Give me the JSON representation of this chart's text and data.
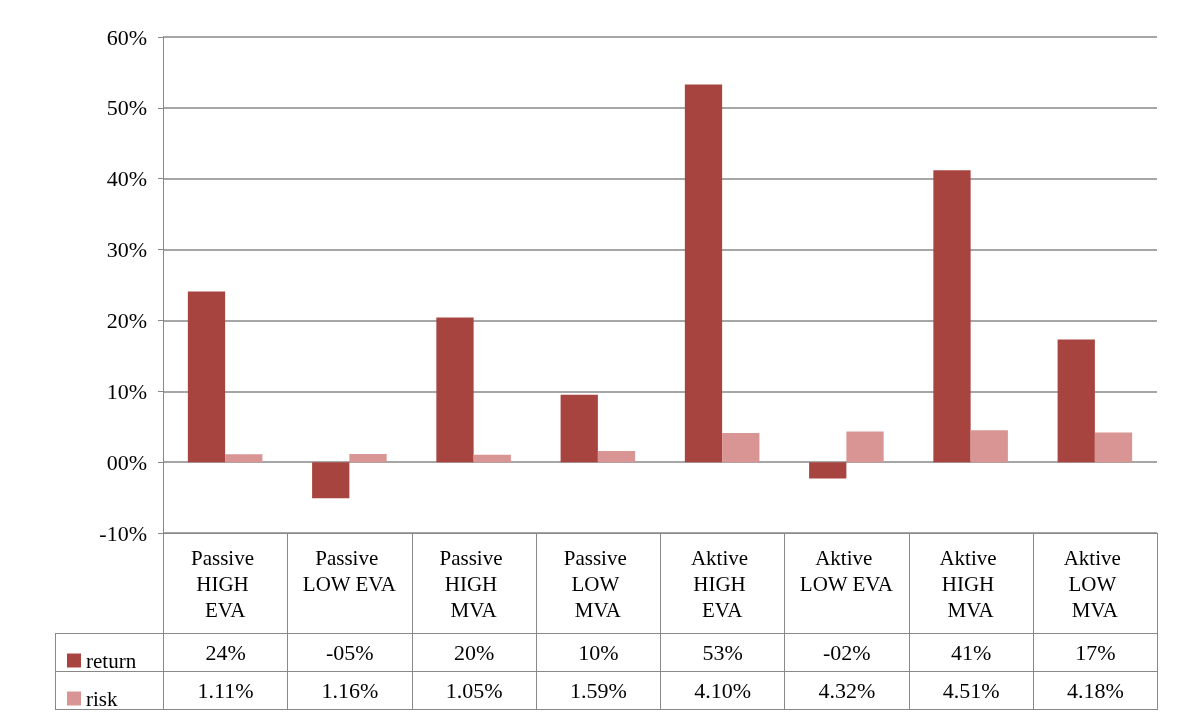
{
  "chart_data": {
    "type": "bar",
    "categories": [
      "Passive HIGH EVA",
      "Passive LOW EVA",
      "Passive HIGH MVA",
      "Passive LOW MVA",
      "Aktive HIGH EVA",
      "Aktive LOW EVA",
      "Aktive HIGH MVA",
      "Aktive LOW MVA"
    ],
    "series": [
      {
        "name": "return",
        "color": "#a8443f",
        "values": [
          24.1,
          -5.1,
          20.4,
          9.5,
          53.3,
          -2.3,
          41.2,
          17.3
        ],
        "value_labels": [
          "24%",
          "-05%",
          "20%",
          "10%",
          "53%",
          "-02%",
          "41%",
          "17%"
        ]
      },
      {
        "name": "risk",
        "color": "#d99594",
        "values": [
          1.11,
          1.16,
          1.05,
          1.59,
          4.1,
          4.32,
          4.51,
          4.18
        ],
        "value_labels": [
          "1.11%",
          "1.16%",
          "1.05%",
          "1.59%",
          "4.10%",
          "4.32%",
          "4.51%",
          "4.18%"
        ]
      }
    ],
    "ylim": [
      -10,
      60
    ],
    "yticks": [
      {
        "value": -10,
        "label": "-10%"
      },
      {
        "value": 0,
        "label": "00%"
      },
      {
        "value": 10,
        "label": "10%"
      },
      {
        "value": 20,
        "label": "20%"
      },
      {
        "value": 30,
        "label": "30%"
      },
      {
        "value": 40,
        "label": "40%"
      },
      {
        "value": 50,
        "label": "50%"
      },
      {
        "value": 60,
        "label": "60%"
      }
    ],
    "grid": "y",
    "legend": "bottom left"
  }
}
